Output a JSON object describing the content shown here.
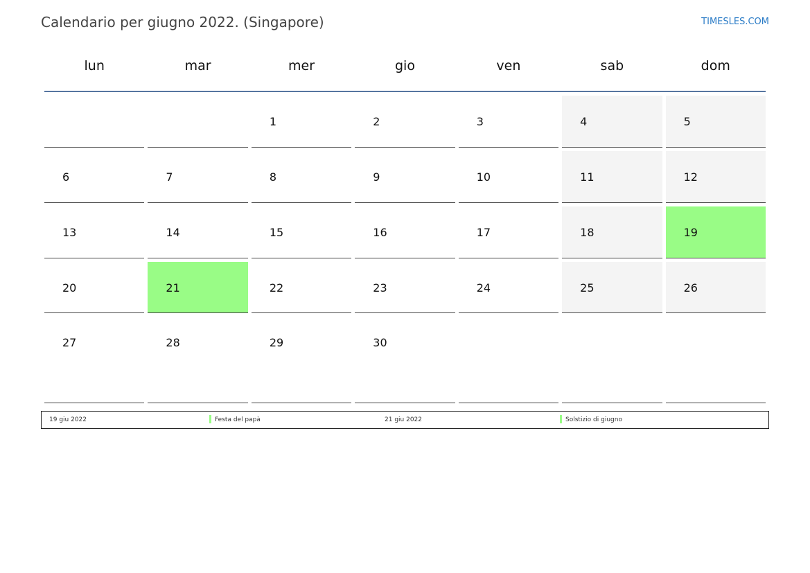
{
  "title": "Calendario per giugno 2022. (Singapore)",
  "brand": "TIMESLES.COM",
  "weekdays": [
    "lun",
    "mar",
    "mer",
    "gio",
    "ven",
    "sab",
    "dom"
  ],
  "colors": {
    "holiday": "#99fc86",
    "weekend": "#f4f4f4",
    "rule": "#5675a0"
  },
  "weeks": [
    [
      "",
      "",
      "1",
      "2",
      "3",
      "4",
      "5"
    ],
    [
      "6",
      "7",
      "8",
      "9",
      "10",
      "11",
      "12"
    ],
    [
      "13",
      "14",
      "15",
      "16",
      "17",
      "18",
      "19"
    ],
    [
      "20",
      "21",
      "22",
      "23",
      "24",
      "25",
      "26"
    ],
    [
      "27",
      "28",
      "29",
      "30",
      "",
      "",
      ""
    ]
  ],
  "highlighted_days": [
    "19",
    "21"
  ],
  "legend": [
    {
      "date": "19 giu 2022",
      "name": "Festa del papà"
    },
    {
      "date": "21 giu 2022",
      "name": "Solstizio di giugno"
    }
  ]
}
